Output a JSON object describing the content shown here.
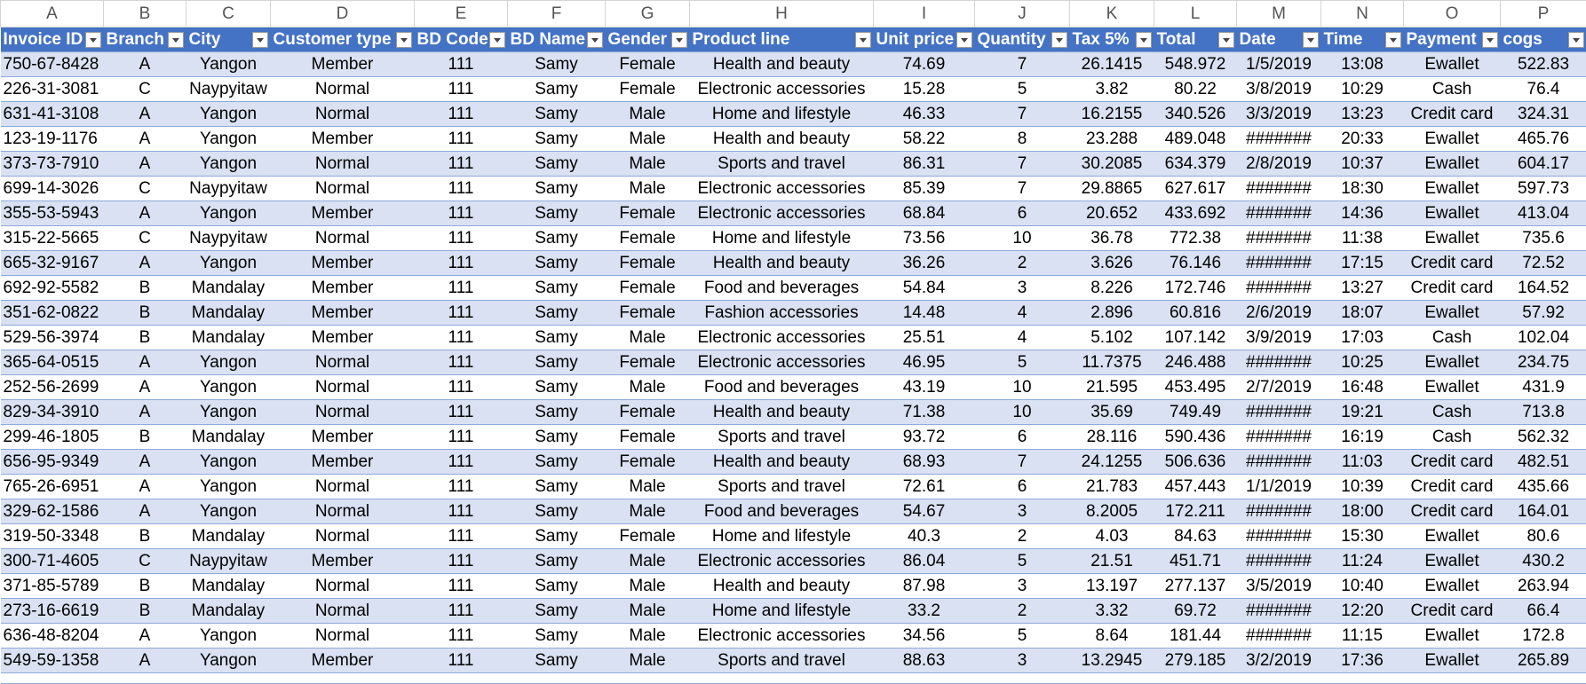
{
  "columns": [
    "A",
    "B",
    "C",
    "D",
    "E",
    "F",
    "G",
    "H",
    "I",
    "J",
    "K",
    "L",
    "M",
    "N",
    "O",
    "P"
  ],
  "header": [
    "Invoice ID",
    "Branch",
    "City",
    "Customer type",
    "BD Code",
    "BD Name",
    "Gender",
    "Product line",
    "Unit price",
    "Quantity",
    "Tax 5%",
    "Total",
    "Date",
    "Time",
    "Payment",
    "cogs"
  ],
  "rows": [
    [
      "750-67-8428",
      "A",
      "Yangon",
      "Member",
      "111",
      "Samy",
      "Female",
      "Health and beauty",
      "74.69",
      "7",
      "26.1415",
      "548.972",
      "1/5/2019",
      "13:08",
      "Ewallet",
      "522.83"
    ],
    [
      "226-31-3081",
      "C",
      "Naypyitaw",
      "Normal",
      "111",
      "Samy",
      "Female",
      "Electronic accessories",
      "15.28",
      "5",
      "3.82",
      "80.22",
      "3/8/2019",
      "10:29",
      "Cash",
      "76.4"
    ],
    [
      "631-41-3108",
      "A",
      "Yangon",
      "Normal",
      "111",
      "Samy",
      "Male",
      "Home and lifestyle",
      "46.33",
      "7",
      "16.2155",
      "340.526",
      "3/3/2019",
      "13:23",
      "Credit card",
      "324.31"
    ],
    [
      "123-19-1176",
      "A",
      "Yangon",
      "Member",
      "111",
      "Samy",
      "Male",
      "Health and beauty",
      "58.22",
      "8",
      "23.288",
      "489.048",
      "#######",
      "20:33",
      "Ewallet",
      "465.76"
    ],
    [
      "373-73-7910",
      "A",
      "Yangon",
      "Normal",
      "111",
      "Samy",
      "Male",
      "Sports and travel",
      "86.31",
      "7",
      "30.2085",
      "634.379",
      "2/8/2019",
      "10:37",
      "Ewallet",
      "604.17"
    ],
    [
      "699-14-3026",
      "C",
      "Naypyitaw",
      "Normal",
      "111",
      "Samy",
      "Male",
      "Electronic accessories",
      "85.39",
      "7",
      "29.8865",
      "627.617",
      "#######",
      "18:30",
      "Ewallet",
      "597.73"
    ],
    [
      "355-53-5943",
      "A",
      "Yangon",
      "Member",
      "111",
      "Samy",
      "Female",
      "Electronic accessories",
      "68.84",
      "6",
      "20.652",
      "433.692",
      "#######",
      "14:36",
      "Ewallet",
      "413.04"
    ],
    [
      "315-22-5665",
      "C",
      "Naypyitaw",
      "Normal",
      "111",
      "Samy",
      "Female",
      "Home and lifestyle",
      "73.56",
      "10",
      "36.78",
      "772.38",
      "#######",
      "11:38",
      "Ewallet",
      "735.6"
    ],
    [
      "665-32-9167",
      "A",
      "Yangon",
      "Member",
      "111",
      "Samy",
      "Female",
      "Health and beauty",
      "36.26",
      "2",
      "3.626",
      "76.146",
      "#######",
      "17:15",
      "Credit card",
      "72.52"
    ],
    [
      "692-92-5582",
      "B",
      "Mandalay",
      "Member",
      "111",
      "Samy",
      "Female",
      "Food and beverages",
      "54.84",
      "3",
      "8.226",
      "172.746",
      "#######",
      "13:27",
      "Credit card",
      "164.52"
    ],
    [
      "351-62-0822",
      "B",
      "Mandalay",
      "Member",
      "111",
      "Samy",
      "Female",
      "Fashion accessories",
      "14.48",
      "4",
      "2.896",
      "60.816",
      "2/6/2019",
      "18:07",
      "Ewallet",
      "57.92"
    ],
    [
      "529-56-3974",
      "B",
      "Mandalay",
      "Member",
      "111",
      "Samy",
      "Male",
      "Electronic accessories",
      "25.51",
      "4",
      "5.102",
      "107.142",
      "3/9/2019",
      "17:03",
      "Cash",
      "102.04"
    ],
    [
      "365-64-0515",
      "A",
      "Yangon",
      "Normal",
      "111",
      "Samy",
      "Female",
      "Electronic accessories",
      "46.95",
      "5",
      "11.7375",
      "246.488",
      "#######",
      "10:25",
      "Ewallet",
      "234.75"
    ],
    [
      "252-56-2699",
      "A",
      "Yangon",
      "Normal",
      "111",
      "Samy",
      "Male",
      "Food and beverages",
      "43.19",
      "10",
      "21.595",
      "453.495",
      "2/7/2019",
      "16:48",
      "Ewallet",
      "431.9"
    ],
    [
      "829-34-3910",
      "A",
      "Yangon",
      "Normal",
      "111",
      "Samy",
      "Female",
      "Health and beauty",
      "71.38",
      "10",
      "35.69",
      "749.49",
      "#######",
      "19:21",
      "Cash",
      "713.8"
    ],
    [
      "299-46-1805",
      "B",
      "Mandalay",
      "Member",
      "111",
      "Samy",
      "Female",
      "Sports and travel",
      "93.72",
      "6",
      "28.116",
      "590.436",
      "#######",
      "16:19",
      "Cash",
      "562.32"
    ],
    [
      "656-95-9349",
      "A",
      "Yangon",
      "Member",
      "111",
      "Samy",
      "Female",
      "Health and beauty",
      "68.93",
      "7",
      "24.1255",
      "506.636",
      "#######",
      "11:03",
      "Credit card",
      "482.51"
    ],
    [
      "765-26-6951",
      "A",
      "Yangon",
      "Normal",
      "111",
      "Samy",
      "Male",
      "Sports and travel",
      "72.61",
      "6",
      "21.783",
      "457.443",
      "1/1/2019",
      "10:39",
      "Credit card",
      "435.66"
    ],
    [
      "329-62-1586",
      "A",
      "Yangon",
      "Normal",
      "111",
      "Samy",
      "Male",
      "Food and beverages",
      "54.67",
      "3",
      "8.2005",
      "172.211",
      "#######",
      "18:00",
      "Credit card",
      "164.01"
    ],
    [
      "319-50-3348",
      "B",
      "Mandalay",
      "Normal",
      "111",
      "Samy",
      "Female",
      "Home and lifestyle",
      "40.3",
      "2",
      "4.03",
      "84.63",
      "#######",
      "15:30",
      "Ewallet",
      "80.6"
    ],
    [
      "300-71-4605",
      "C",
      "Naypyitaw",
      "Member",
      "111",
      "Samy",
      "Male",
      "Electronic accessories",
      "86.04",
      "5",
      "21.51",
      "451.71",
      "#######",
      "11:24",
      "Ewallet",
      "430.2"
    ],
    [
      "371-85-5789",
      "B",
      "Mandalay",
      "Normal",
      "111",
      "Samy",
      "Male",
      "Health and beauty",
      "87.98",
      "3",
      "13.197",
      "277.137",
      "3/5/2019",
      "10:40",
      "Ewallet",
      "263.94"
    ],
    [
      "273-16-6619",
      "B",
      "Mandalay",
      "Normal",
      "111",
      "Samy",
      "Male",
      "Home and lifestyle",
      "33.2",
      "2",
      "3.32",
      "69.72",
      "#######",
      "12:20",
      "Credit card",
      "66.4"
    ],
    [
      "636-48-8204",
      "A",
      "Yangon",
      "Normal",
      "111",
      "Samy",
      "Male",
      "Electronic accessories",
      "34.56",
      "5",
      "8.64",
      "181.44",
      "#######",
      "11:15",
      "Ewallet",
      "172.8"
    ],
    [
      "549-59-1358",
      "A",
      "Yangon",
      "Member",
      "111",
      "Samy",
      "Male",
      "Sports and travel",
      "88.63",
      "3",
      "13.2945",
      "279.185",
      "3/2/2019",
      "17:36",
      "Ewallet",
      "265.89"
    ]
  ]
}
